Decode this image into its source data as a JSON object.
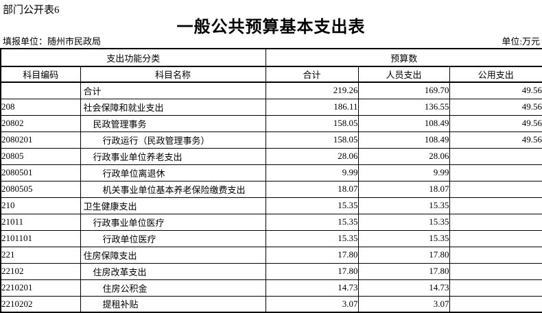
{
  "page": {
    "table_label": "部门公开表6",
    "title": "一般公共预算基本支出表",
    "reporting_unit": "填报单位：随州市民政局",
    "unit_note": "单位:万元"
  },
  "table": {
    "header": {
      "group_function": "支出功能分类",
      "group_budget": "预算数",
      "col_code": "科目编码",
      "col_name": "科目名称",
      "col_total": "合计",
      "col_personnel": "人员支出",
      "col_public": "公用支出"
    },
    "rows": [
      {
        "code": "",
        "name": "合计",
        "indent": 0,
        "total": "219.26",
        "personnel": "169.70",
        "public": "49.56"
      },
      {
        "code": "208",
        "name": "社会保障和就业支出",
        "indent": 0,
        "total": "186.11",
        "personnel": "136.55",
        "public": "49.56"
      },
      {
        "code": "20802",
        "name": "民政管理事务",
        "indent": 1,
        "total": "158.05",
        "personnel": "108.49",
        "public": "49.56"
      },
      {
        "code": "2080201",
        "name": "行政运行（民政管理事务）",
        "indent": 2,
        "total": "158.05",
        "personnel": "108.49",
        "public": "49.56"
      },
      {
        "code": "20805",
        "name": "行政事业单位养老支出",
        "indent": 1,
        "total": "28.06",
        "personnel": "28.06",
        "public": ""
      },
      {
        "code": "2080501",
        "name": "行政单位离退休",
        "indent": 2,
        "total": "9.99",
        "personnel": "9.99",
        "public": ""
      },
      {
        "code": "2080505",
        "name": "机关事业单位基本养老保险缴费支出",
        "indent": 2,
        "total": "18.07",
        "personnel": "18.07",
        "public": ""
      },
      {
        "code": "210",
        "name": "卫生健康支出",
        "indent": 0,
        "total": "15.35",
        "personnel": "15.35",
        "public": ""
      },
      {
        "code": "21011",
        "name": "行政事业单位医疗",
        "indent": 1,
        "total": "15.35",
        "personnel": "15.35",
        "public": ""
      },
      {
        "code": "2101101",
        "name": "行政单位医疗",
        "indent": 2,
        "total": "15.35",
        "personnel": "15.35",
        "public": ""
      },
      {
        "code": "221",
        "name": "住房保障支出",
        "indent": 0,
        "total": "17.80",
        "personnel": "17.80",
        "public": ""
      },
      {
        "code": "22102",
        "name": "住房改革支出",
        "indent": 1,
        "total": "17.80",
        "personnel": "17.80",
        "public": ""
      },
      {
        "code": "2210201",
        "name": "住房公积金",
        "indent": 2,
        "total": "14.73",
        "personnel": "14.73",
        "public": ""
      },
      {
        "code": "2210202",
        "name": "提租补贴",
        "indent": 2,
        "total": "3.07",
        "personnel": "3.07",
        "public": ""
      }
    ]
  }
}
